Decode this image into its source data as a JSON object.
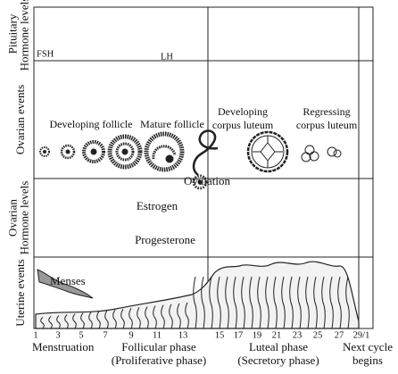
{
  "row_labels": [
    [
      "Pituitary",
      "Hormone levels"
    ],
    [
      "Ovarian events"
    ],
    [
      "Ovarian",
      "Hormone levels"
    ],
    [
      "Uterine events"
    ]
  ],
  "pituitary": {
    "fsh": "FSH",
    "lh": "LH"
  },
  "ovarian_events": {
    "developing_follicle": "Developing follicle",
    "mature_follicle": "Mature follicle",
    "developing_corpus_luteum": [
      "Developing",
      "corpus luteum"
    ],
    "regressing_corpus_luteum": [
      "Regressing",
      "corpus luteum"
    ],
    "ovulation": "Ovulation"
  },
  "hormones": {
    "estrogen": "Estrogen",
    "progesterone": "Progesterone"
  },
  "menses": "Menses",
  "days": [
    1,
    3,
    5,
    7,
    9,
    11,
    13,
    15,
    17,
    19,
    21,
    23,
    25,
    27,
    "29/1"
  ],
  "phases": [
    [
      "Menstruation"
    ],
    [
      "Follicular phase",
      "(Proliferative phase)"
    ],
    [
      "Luteal phase",
      "(Secretory phase)"
    ],
    [
      "Next cycle",
      "begins"
    ]
  ]
}
